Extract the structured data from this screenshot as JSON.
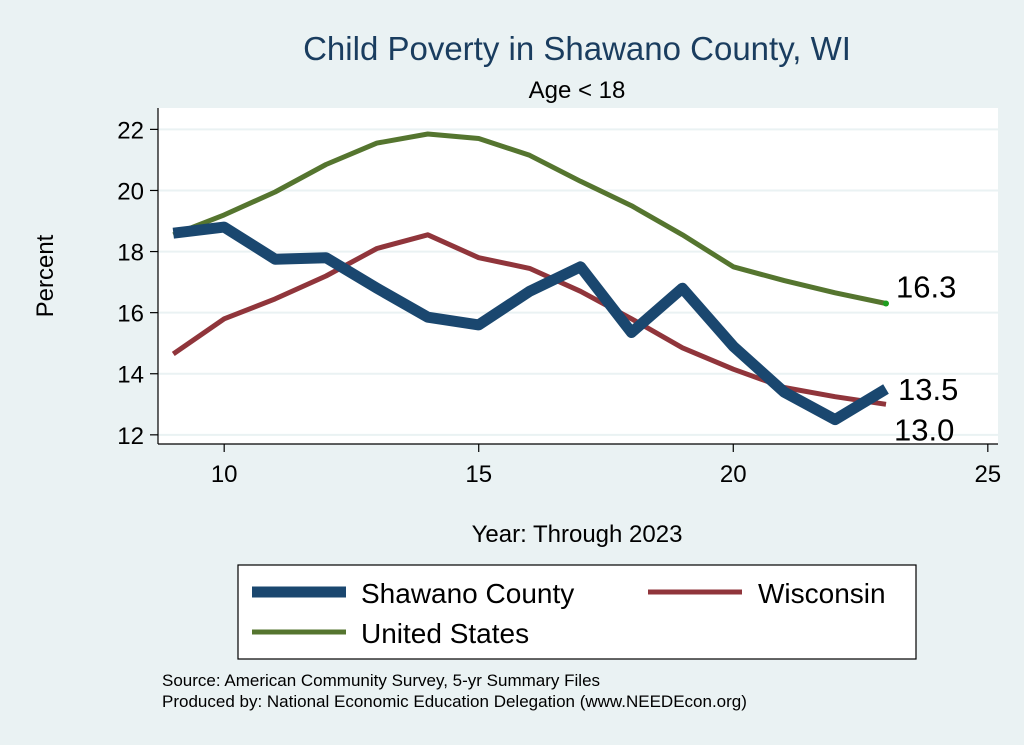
{
  "chart_data": {
    "type": "line",
    "title": "Child Poverty in Shawano County, WI",
    "subtitle": "Age < 18",
    "xlabel": "Year: Through 2023",
    "ylabel": "Percent",
    "xlim": [
      8.7,
      25.2
    ],
    "ylim": [
      11.7,
      22.7
    ],
    "xticks": [
      10,
      15,
      20,
      25
    ],
    "yticks": [
      12,
      14,
      16,
      18,
      20,
      22
    ],
    "grid": true,
    "legend_position": "bottom",
    "x": [
      9,
      10,
      11,
      12,
      13,
      14,
      15,
      16,
      17,
      18,
      19,
      20,
      21,
      22,
      23
    ],
    "series": [
      {
        "name": "Shawano County",
        "color": "#1A476F",
        "values": [
          18.6,
          18.8,
          17.75,
          17.8,
          16.8,
          15.85,
          15.6,
          16.7,
          17.5,
          15.35,
          16.8,
          14.9,
          13.4,
          12.5,
          13.5
        ],
        "end_label": "13.5"
      },
      {
        "name": "Wisconsin",
        "color": "#90353B",
        "values": [
          14.65,
          15.8,
          16.45,
          17.2,
          18.1,
          18.55,
          17.8,
          17.45,
          16.7,
          15.8,
          14.85,
          14.15,
          13.55,
          13.25,
          13.0
        ],
        "end_label": "13.0"
      },
      {
        "name": "United States",
        "color": "#55752F",
        "values": [
          18.55,
          19.2,
          19.95,
          20.85,
          21.55,
          21.85,
          21.7,
          21.15,
          20.3,
          19.5,
          18.55,
          17.5,
          17.05,
          16.65,
          16.3
        ],
        "end_label": "16.3"
      }
    ],
    "source_note": "Source: American Community Survey, 5-yr Summary Files",
    "produced_note": "Produced by: National Economic Education Delegation (www.NEEDEcon.org)"
  }
}
